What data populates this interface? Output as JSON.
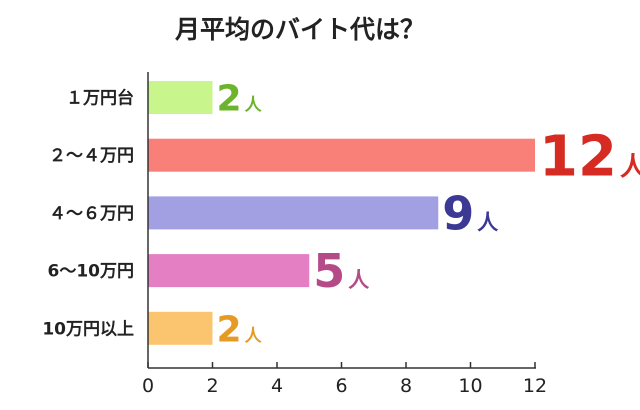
{
  "chart_data": {
    "type": "bar",
    "orientation": "horizontal",
    "title": "月平均のバイト代は？",
    "categories": [
      "１万円台",
      "２～４万円",
      "４～６万円",
      "6～10万円",
      "10万円以上"
    ],
    "values": [
      2,
      12,
      9,
      5,
      2
    ],
    "value_unit": "人",
    "bar_colors": [
      "#c8f68c",
      "#f88078",
      "#a2a0e2",
      "#e47fc4",
      "#fbc570"
    ],
    "label_colors": [
      "#6cb42c",
      "#d62b22",
      "#3b3994",
      "#b54a89",
      "#e59a23"
    ],
    "xlim": [
      0,
      12
    ],
    "xticks": [
      0,
      2,
      4,
      6,
      8,
      10,
      12
    ],
    "grid": false,
    "legend": "none"
  }
}
